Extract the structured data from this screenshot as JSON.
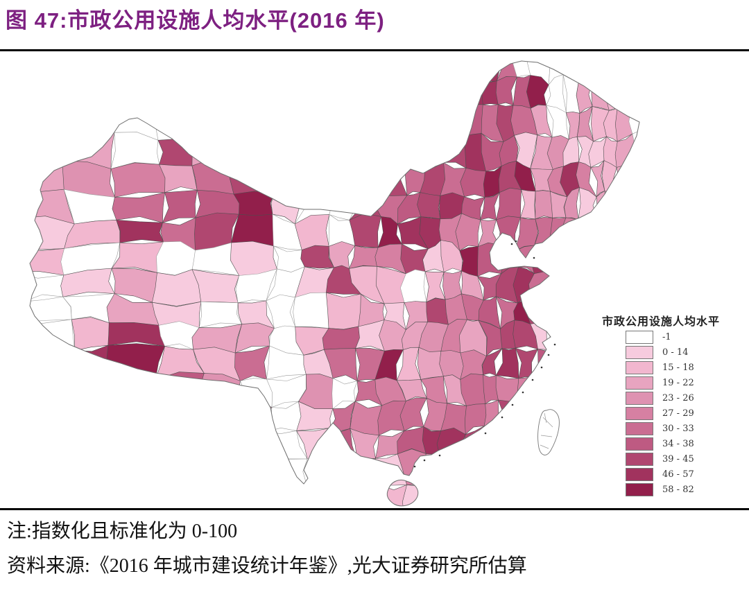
{
  "figure": {
    "title": "图 47:市政公用设施人均水平(2016 年)",
    "title_color": "#7D2081",
    "note": "注:指数化且标准化为 0-100",
    "source": "资料来源:《2016 年城市建设统计年鉴》,光大证券研究所估算"
  },
  "chart_data": {
    "type": "choropleth",
    "region": "中国(地级行政区划)",
    "year": "2016",
    "metric": "市政公用设施人均水平(指数化且标准化为 0-100)",
    "legend": {
      "title": "市政公用设施人均水平",
      "position": "right",
      "classes": [
        {
          "label": "-1",
          "color": "#FFFFFF"
        },
        {
          "label": "0 - 14",
          "color": "#F7CBDE"
        },
        {
          "label": "15 - 18",
          "color": "#F2B7CF"
        },
        {
          "label": "19 - 22",
          "color": "#E8A4C0"
        },
        {
          "label": "23 - 26",
          "color": "#DE92B1"
        },
        {
          "label": "27 - 29",
          "color": "#D680A2"
        },
        {
          "label": "30 - 33",
          "color": "#CA6D92"
        },
        {
          "label": "34 - 38",
          "color": "#BE5A82"
        },
        {
          "label": "39 - 45",
          "color": "#B04770"
        },
        {
          "label": "46 - 57",
          "color": "#A1335E"
        },
        {
          "label": "58 - 82",
          "color": "#921F4B"
        }
      ]
    },
    "regional_patterns": [
      {
        "area": "西藏大部、青海、川西高原",
        "value_class": "-1(白色,无数据)"
      },
      {
        "area": "拉萨及周边",
        "value_class": "58 - 82(深红)"
      },
      {
        "area": "新疆北部与南部(喀什、和田)",
        "value_class": "-1 至 0 - 22(浅色)"
      },
      {
        "area": "新疆伊犁、巴州、哈密、乌鲁木齐",
        "value_class": "27 - 57(中深色)"
      },
      {
        "area": "内蒙古中东部(锡林郭勒、呼伦贝尔、包头)",
        "value_class": "34 - 57"
      },
      {
        "area": "黑龙江大部",
        "value_class": "0 - 22(浅粉)"
      },
      {
        "area": "吉林、辽宁",
        "value_class": "19 - 38(混合)"
      },
      {
        "area": "山东半岛、京津唐",
        "value_class": "34 - 57(深)"
      },
      {
        "area": "江苏、浙江沿海",
        "value_class": "34 - 82(深),上海周边个别 0 - 14"
      },
      {
        "area": "福建、广东沿海(珠三角)",
        "value_class": "30 - 82(深)"
      },
      {
        "area": "中部湘鄂赣皖豫",
        "value_class": "19 - 38(混合)"
      },
      {
        "area": "云贵川桂",
        "value_class": "0 - 33,夹杂白色斑块"
      },
      {
        "area": "海南",
        "value_class": "-1 与 23 - 45 混合"
      },
      {
        "area": "台湾",
        "value_class": "仅轮廓,无填色"
      }
    ]
  }
}
